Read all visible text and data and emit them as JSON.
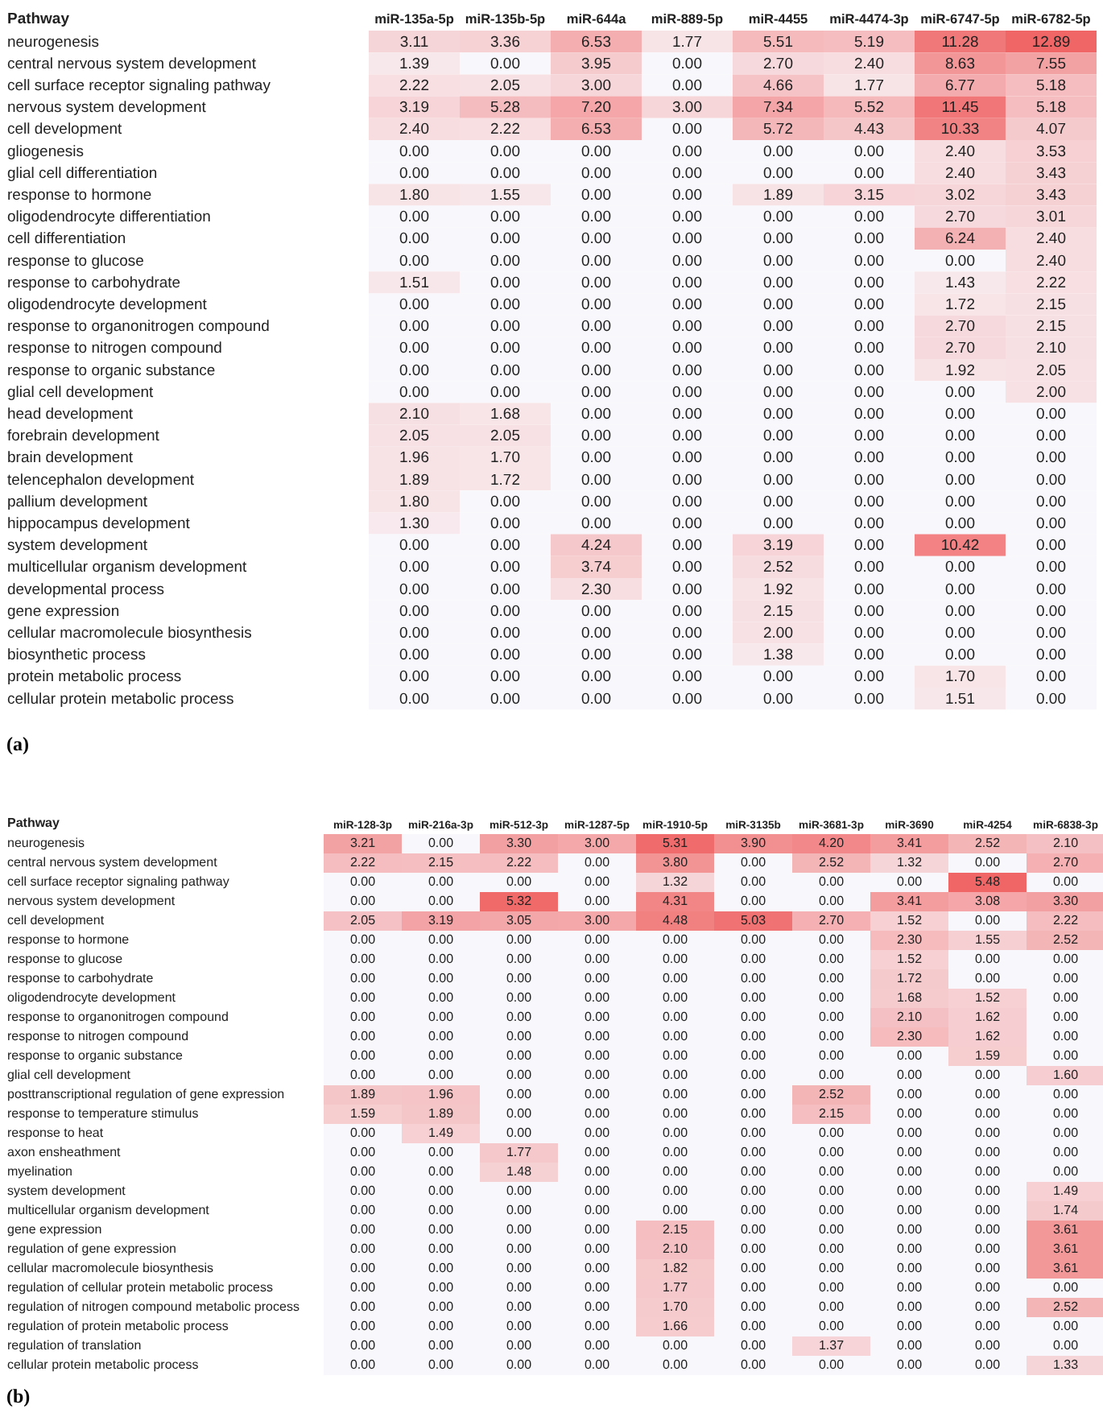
{
  "chart_data": [
    {
      "type": "heatmap",
      "ylabel": "Pathway",
      "annotations": [
        "(a)"
      ],
      "categories": [
        "miR-135a-5p",
        "miR-135b-5p",
        "miR-644a",
        "miR-889-5p",
        "miR-4455",
        "miR-4474-3p",
        "miR-6747-5p",
        "miR-6782-5p"
      ],
      "y_categories": [
        "neurogenesis",
        "central nervous system development",
        "cell surface receptor signaling pathway",
        "nervous system development",
        "cell development",
        "gliogenesis",
        "glial cell differentiation",
        "response to hormone",
        "oligodendrocyte differentiation",
        "cell differentiation",
        "response to glucose",
        "response to carbohydrate",
        "oligodendrocyte development",
        "response to organonitrogen compound",
        "response to nitrogen compound",
        "response to organic substance",
        "glial cell development",
        "head development",
        "forebrain development",
        "brain development",
        "telencephalon development",
        "pallium development",
        "hippocampus development",
        "system development",
        "multicellular organism development",
        "developmental process",
        "gene expression",
        "cellular macromolecule biosynthesis",
        "biosynthetic process",
        "protein metabolic process",
        "cellular protein metabolic process"
      ],
      "cells": [
        [
          3.11,
          3.36,
          6.53,
          1.77,
          5.51,
          5.19,
          11.28,
          12.89
        ],
        [
          1.39,
          0,
          3.95,
          0,
          2.7,
          2.4,
          8.63,
          7.55
        ],
        [
          2.22,
          2.05,
          3.0,
          0,
          4.66,
          1.77,
          6.77,
          5.18
        ],
        [
          3.19,
          5.28,
          7.2,
          3.0,
          7.34,
          5.52,
          11.45,
          5.18
        ],
        [
          2.4,
          2.22,
          6.53,
          0,
          5.72,
          4.43,
          10.33,
          4.07
        ],
        [
          0,
          0,
          0,
          0,
          0,
          0,
          2.4,
          3.53
        ],
        [
          0,
          0,
          0,
          0,
          0,
          0,
          2.4,
          3.43
        ],
        [
          1.8,
          1.55,
          0,
          0,
          1.89,
          3.15,
          3.02,
          3.43
        ],
        [
          0,
          0,
          0,
          0,
          0,
          0,
          2.7,
          3.01
        ],
        [
          0,
          0,
          0,
          0,
          0,
          0,
          6.24,
          2.4
        ],
        [
          0,
          0,
          0,
          0,
          0,
          0,
          0,
          2.4
        ],
        [
          1.51,
          0,
          0,
          0,
          0,
          0,
          1.43,
          2.22
        ],
        [
          0,
          0,
          0,
          0,
          0,
          0,
          1.72,
          2.15
        ],
        [
          0,
          0,
          0,
          0,
          0,
          0,
          2.7,
          2.15
        ],
        [
          0,
          0,
          0,
          0,
          0,
          0,
          2.7,
          2.1
        ],
        [
          0,
          0,
          0,
          0,
          0,
          0,
          1.92,
          2.05
        ],
        [
          0,
          0,
          0,
          0,
          0,
          0,
          0,
          2.0
        ],
        [
          2.1,
          1.68,
          0,
          0,
          0,
          0,
          0,
          0
        ],
        [
          2.05,
          2.05,
          0,
          0,
          0,
          0,
          0,
          0
        ],
        [
          1.96,
          1.7,
          0,
          0,
          0,
          0,
          0,
          0
        ],
        [
          1.89,
          1.72,
          0,
          0,
          0,
          0,
          0,
          0
        ],
        [
          1.8,
          0,
          0,
          0,
          0,
          0,
          0,
          0
        ],
        [
          1.3,
          0,
          0,
          0,
          0,
          0,
          0,
          0
        ],
        [
          0,
          0,
          4.24,
          0,
          3.19,
          0,
          10.42,
          0
        ],
        [
          0,
          0,
          3.74,
          0,
          2.52,
          0,
          0,
          0
        ],
        [
          0,
          0,
          2.3,
          0,
          1.92,
          0,
          0,
          0
        ],
        [
          0,
          0,
          0,
          0,
          2.15,
          0,
          0,
          0
        ],
        [
          0,
          0,
          0,
          0,
          2.0,
          0,
          0,
          0
        ],
        [
          0,
          0,
          0,
          0,
          1.38,
          0,
          0,
          0
        ],
        [
          0,
          0,
          0,
          0,
          0,
          0,
          1.7,
          0
        ],
        [
          0,
          0,
          0,
          0,
          0,
          0,
          1.51,
          0
        ]
      ],
      "cell_labels": [
        [
          "3.11",
          "3.36",
          "6.53",
          "1.77",
          "5.51",
          "5.19",
          "11.28",
          "12.89"
        ],
        [
          "1.39",
          "0.00",
          "3.95",
          "0.00",
          "2.70",
          "2.40",
          "8.63",
          "7.55"
        ],
        [
          "2.22",
          "2.05",
          "3.00",
          "0.00",
          "4.66",
          "1.77",
          "6.77",
          "5.18"
        ],
        [
          "3.19",
          "5.28",
          "7.20",
          "3.00",
          "7.34",
          "5.52",
          "11.45",
          "5.18"
        ],
        [
          "2.40",
          "2.22",
          "6.53",
          "0.00",
          "5.72",
          "4.43",
          "10.33",
          "4.07"
        ],
        [
          "0.00",
          "0.00",
          "0.00",
          "0.00",
          "0.00",
          "0.00",
          "2.40",
          "3.53"
        ],
        [
          "0.00",
          "0.00",
          "0.00",
          "0.00",
          "0.00",
          "0.00",
          "2.40",
          "3.43"
        ],
        [
          "1.80",
          "1.55",
          "0.00",
          "0.00",
          "1.89",
          "3.15",
          "3.02",
          "3.43"
        ],
        [
          "0.00",
          "0.00",
          "0.00",
          "0.00",
          "0.00",
          "0.00",
          "2.70",
          "3.01"
        ],
        [
          "0.00",
          "0.00",
          "0.00",
          "0.00",
          "0.00",
          "0.00",
          "6.24",
          "2.40"
        ],
        [
          "0.00",
          "0.00",
          "0.00",
          "0.00",
          "0.00",
          "0.00",
          "0.00",
          "2.40"
        ],
        [
          "1.51",
          "0.00",
          "0.00",
          "0.00",
          "0.00",
          "0.00",
          "1.43",
          "2.22"
        ],
        [
          "0.00",
          "0.00",
          "0.00",
          "0.00",
          "0.00",
          "0.00",
          "1.72",
          "2.15"
        ],
        [
          "0.00",
          "0.00",
          "0.00",
          "0.00",
          "0.00",
          "0.00",
          "2.70",
          "2.15"
        ],
        [
          "0.00",
          "0.00",
          "0.00",
          "0.00",
          "0.00",
          "0.00",
          "2.70",
          "2.10"
        ],
        [
          "0.00",
          "0.00",
          "0.00",
          "0.00",
          "0.00",
          "0.00",
          "1.92",
          "2.05"
        ],
        [
          "0.00",
          "0.00",
          "0.00",
          "0.00",
          "0.00",
          "0.00",
          "0.00",
          "2.00"
        ],
        [
          "2.10",
          "1.68",
          "0.00",
          "0.00",
          "0.00",
          "0.00",
          "0.00",
          "0.00"
        ],
        [
          "2.05",
          "2.05",
          "0.00",
          "0.00",
          "0.00",
          "0.00",
          "0.00",
          "0.00"
        ],
        [
          "1.96",
          "1.70",
          "0.00",
          "0.00",
          "0.00",
          "0.00",
          "0.00",
          "0.00"
        ],
        [
          "1.89",
          "1.72",
          "0.00",
          "0.00",
          "0.00",
          "0.00",
          "0.00",
          "0.00"
        ],
        [
          "1.80",
          "0.00",
          "0.00",
          "0.00",
          "0.00",
          "0.00",
          "0.00",
          "0.00"
        ],
        [
          "1.30",
          "0.00",
          "0.00",
          "0.00",
          "0.00",
          "0.00",
          "0.00",
          "0.00"
        ],
        [
          "0.00",
          "0.00",
          "4.24",
          "0.00",
          "3.19",
          "0.00",
          "10.42",
          "0.00"
        ],
        [
          "0.00",
          "0.00",
          "3.74",
          "0.00",
          "2.52",
          "0.00",
          "0.00",
          "0.00"
        ],
        [
          "0.00",
          "0.00",
          "2.30",
          "0.00",
          "1.92",
          "0.00",
          "0.00",
          "0.00"
        ],
        [
          "0.00",
          "0.00",
          "0.00",
          "0.00",
          "2.15",
          "0.00",
          "0.00",
          "0.00"
        ],
        [
          "0.00",
          "0.00",
          "0.00",
          "0.00",
          "2.00",
          "0.00",
          "0.00",
          "0.00"
        ],
        [
          "0.00",
          "0.00",
          "0.00",
          "0.00",
          "1.38",
          "0.00",
          "0.00",
          "0.00"
        ],
        [
          "0.00",
          "0.00",
          "0.00",
          "0.00",
          "0.00",
          "0.00",
          "1.70",
          "0.00"
        ],
        [
          "0.00",
          "0.00",
          "0.00",
          "0.00",
          "0.00",
          "0.00",
          "1.51",
          "0.00"
        ]
      ]
    },
    {
      "type": "heatmap",
      "ylabel": "Pathway",
      "annotations": [
        "(b)"
      ],
      "categories": [
        "miR-128-3p",
        "miR-216a-3p",
        "miR-512-3p",
        "miR-1287-5p",
        "miR-1910-5p",
        "miR-3135b",
        "miR-3681-3p",
        "miR-3690",
        "miR-4254",
        "miR-6838-3p"
      ],
      "y_categories": [
        "neurogenesis",
        "central nervous system development",
        "cell surface receptor signaling pathway",
        "nervous system development",
        "cell development",
        "response to hormone",
        "response to glucose",
        "response to carbohydrate",
        "oligodendrocyte development",
        "response to organonitrogen compound",
        "response to nitrogen compound",
        "response to organic substance",
        "glial cell development",
        "posttranscriptional regulation of gene expression",
        "response to temperature stimulus",
        "response to heat",
        "axon ensheathment",
        "myelination",
        "system development",
        "multicellular organism development",
        "gene expression",
        "regulation of gene expression",
        "cellular macromolecule biosynthesis",
        "regulation of cellular protein metabolic process",
        "regulation of nitrogen compound metabolic process",
        "regulation of protein metabolic process",
        "regulation of translation",
        "cellular protein metabolic process"
      ],
      "cells": [
        [
          3.21,
          0,
          3.3,
          3.0,
          5.31,
          3.9,
          4.2,
          3.41,
          2.52,
          2.1
        ],
        [
          2.22,
          2.15,
          2.22,
          0,
          3.8,
          0,
          2.52,
          1.32,
          0,
          2.7
        ],
        [
          0,
          0,
          0,
          0,
          1.32,
          0,
          0,
          0,
          5.48,
          0
        ],
        [
          0,
          0,
          5.32,
          0,
          4.31,
          0,
          0,
          3.41,
          3.08,
          3.3
        ],
        [
          2.05,
          3.19,
          3.05,
          3.0,
          4.48,
          5.03,
          2.7,
          1.52,
          0,
          2.22
        ],
        [
          0,
          0,
          0,
          0,
          0,
          0,
          0,
          2.3,
          1.55,
          2.52
        ],
        [
          0,
          0,
          0,
          0,
          0,
          0,
          0,
          1.52,
          0,
          0
        ],
        [
          0,
          0,
          0,
          0,
          0,
          0,
          0,
          1.72,
          0,
          0
        ],
        [
          0,
          0,
          0,
          0,
          0,
          0,
          0,
          1.68,
          1.52,
          0
        ],
        [
          0,
          0,
          0,
          0,
          0,
          0,
          0,
          2.1,
          1.62,
          0
        ],
        [
          0,
          0,
          0,
          0,
          0,
          0,
          0,
          2.3,
          1.62,
          0
        ],
        [
          0,
          0,
          0,
          0,
          0,
          0,
          0,
          0,
          1.59,
          0
        ],
        [
          0,
          0,
          0,
          0,
          0,
          0,
          0,
          0,
          0,
          1.6
        ],
        [
          1.89,
          1.96,
          0,
          0,
          0,
          0,
          2.52,
          0,
          0,
          0
        ],
        [
          1.59,
          1.89,
          0,
          0,
          0,
          0,
          2.15,
          0,
          0,
          0
        ],
        [
          0,
          1.49,
          0,
          0,
          0,
          0,
          0,
          0,
          0,
          0
        ],
        [
          0,
          0,
          1.77,
          0,
          0,
          0,
          0,
          0,
          0,
          0
        ],
        [
          0,
          0,
          1.48,
          0,
          0,
          0,
          0,
          0,
          0,
          0
        ],
        [
          0,
          0,
          0,
          0,
          0,
          0,
          0,
          0,
          0,
          1.49
        ],
        [
          0,
          0,
          0,
          0,
          0,
          0,
          0,
          0,
          0,
          1.74
        ],
        [
          0,
          0,
          0,
          0,
          2.15,
          0,
          0,
          0,
          0,
          3.61
        ],
        [
          0,
          0,
          0,
          0,
          2.1,
          0,
          0,
          0,
          0,
          3.61
        ],
        [
          0,
          0,
          0,
          0,
          1.82,
          0,
          0,
          0,
          0,
          3.61
        ],
        [
          0,
          0,
          0,
          0,
          1.77,
          0,
          0,
          0,
          0,
          0
        ],
        [
          0,
          0,
          0,
          0,
          1.7,
          0,
          0,
          0,
          0,
          2.52
        ],
        [
          0,
          0,
          0,
          0,
          1.66,
          0,
          0,
          0,
          0,
          0
        ],
        [
          0,
          0,
          0,
          0,
          0,
          0,
          1.37,
          0,
          0,
          0
        ],
        [
          0,
          0,
          0,
          0,
          0,
          0,
          0,
          0,
          0,
          1.33
        ]
      ],
      "cell_labels": [
        [
          "3.21",
          "0.00",
          "3.30",
          "3.00",
          "5.31",
          "3.90",
          "4.20",
          "3.41",
          "2.52",
          "2.10"
        ],
        [
          "2.22",
          "2.15",
          "2.22",
          "0.00",
          "3.80",
          "0.00",
          "2.52",
          "1.32",
          "0.00",
          "2.70"
        ],
        [
          "0.00",
          "0.00",
          "0.00",
          "0.00",
          "1.32",
          "0.00",
          "0.00",
          "0.00",
          "5.48",
          "0.00"
        ],
        [
          "0.00",
          "0.00",
          "5.32",
          "0.00",
          "4.31",
          "0.00",
          "0.00",
          "3.41",
          "3.08",
          "3.30"
        ],
        [
          "2.05",
          "3.19",
          "3.05",
          "3.00",
          "4.48",
          "5.03",
          "2.70",
          "1.52",
          "0.00",
          "2.22"
        ],
        [
          "0.00",
          "0.00",
          "0.00",
          "0.00",
          "0.00",
          "0.00",
          "0.00",
          "2.30",
          "1.55",
          "2.52"
        ],
        [
          "0.00",
          "0.00",
          "0.00",
          "0.00",
          "0.00",
          "0.00",
          "0.00",
          "1.52",
          "0.00",
          "0.00"
        ],
        [
          "0.00",
          "0.00",
          "0.00",
          "0.00",
          "0.00",
          "0.00",
          "0.00",
          "1.72",
          "0.00",
          "0.00"
        ],
        [
          "0.00",
          "0.00",
          "0.00",
          "0.00",
          "0.00",
          "0.00",
          "0.00",
          "1.68",
          "1.52",
          "0.00"
        ],
        [
          "0.00",
          "0.00",
          "0.00",
          "0.00",
          "0.00",
          "0.00",
          "0.00",
          "2.10",
          "1.62",
          "0.00"
        ],
        [
          "0.00",
          "0.00",
          "0.00",
          "0.00",
          "0.00",
          "0.00",
          "0.00",
          "2.30",
          "1.62",
          "0.00"
        ],
        [
          "0.00",
          "0.00",
          "0.00",
          "0.00",
          "0.00",
          "0.00",
          "0.00",
          "0.00",
          "1.59",
          "0.00"
        ],
        [
          "0.00",
          "0.00",
          "0.00",
          "0.00",
          "0.00",
          "0.00",
          "0.00",
          "0.00",
          "0.00",
          "1.60"
        ],
        [
          "1.89",
          "1.96",
          "0.00",
          "0.00",
          "0.00",
          "0.00",
          "2.52",
          "0.00",
          "0.00",
          "0.00"
        ],
        [
          "1.59",
          "1.89",
          "0.00",
          "0.00",
          "0.00",
          "0.00",
          "2.15",
          "0.00",
          "0.00",
          "0.00"
        ],
        [
          "0.00",
          "1.49",
          "0.00",
          "0.00",
          "0.00",
          "0.00",
          "0.00",
          "0.00",
          "0.00",
          "0.00"
        ],
        [
          "0.00",
          "0.00",
          "1.77",
          "0.00",
          "0.00",
          "0.00",
          "0.00",
          "0.00",
          "0.00",
          "0.00"
        ],
        [
          "0.00",
          "0.00",
          "1.48",
          "0.00",
          "0.00",
          "0.00",
          "0.00",
          "0.00",
          "0.00",
          "0.00"
        ],
        [
          "0.00",
          "0.00",
          "0.00",
          "0.00",
          "0.00",
          "0.00",
          "0.00",
          "0.00",
          "0.00",
          "1.49"
        ],
        [
          "0.00",
          "0.00",
          "0.00",
          "0.00",
          "0.00",
          "0.00",
          "0.00",
          "0.00",
          "0.00",
          "1.74"
        ],
        [
          "0.00",
          "0.00",
          "0.00",
          "0.00",
          "2.15",
          "0.00",
          "0.00",
          "0.00",
          "0.00",
          "3.61"
        ],
        [
          "0.00",
          "0.00",
          "0.00",
          "0.00",
          "2.10",
          "0.00",
          "0.00",
          "0.00",
          "0.00",
          "3.61"
        ],
        [
          "0.00",
          "0.00",
          "0.00",
          "0.00",
          "1.82",
          "0.00",
          "0.00",
          "0.00",
          "0.00",
          "3.61"
        ],
        [
          "0.00",
          "0.00",
          "0.00",
          "0.00",
          "1.77",
          "0.00",
          "0.00",
          "0.00",
          "0.00",
          "0.00"
        ],
        [
          "0.00",
          "0.00",
          "0.00",
          "0.00",
          "1.70",
          "0.00",
          "0.00",
          "0.00",
          "0.00",
          "2.52"
        ],
        [
          "0.00",
          "0.00",
          "0.00",
          "0.00",
          "1.66",
          "0.00",
          "0.00",
          "0.00",
          "0.00",
          "0.00"
        ],
        [
          "0.00",
          "0.00",
          "0.00",
          "0.00",
          "0.00",
          "0.00",
          "1.37",
          "0.00",
          "0.00",
          "0.00"
        ],
        [
          "0.00",
          "0.00",
          "0.00",
          "0.00",
          "0.00",
          "0.00",
          "0.00",
          "0.00",
          "0.00",
          "1.33"
        ]
      ]
    }
  ]
}
